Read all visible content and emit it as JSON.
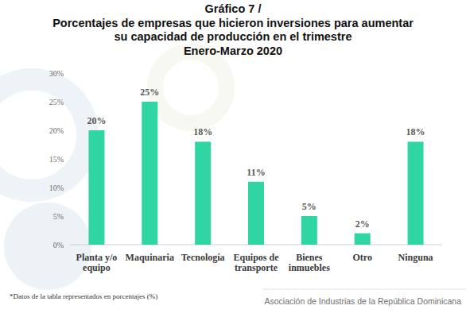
{
  "chart_data": {
    "type": "bar",
    "title": [
      "Gráfico 7 /",
      "Porcentajes de empresas que hicieron inversiones para aumentar",
      "su capacidad de producción en el trimestre",
      "Enero-Marzo 2020"
    ],
    "categories": [
      "Planta y/o equipo",
      "Maquinaria",
      "Tecnología",
      "Equipos de transporte",
      "Bienes inmuebles",
      "Otro",
      "Ninguna"
    ],
    "values": [
      20,
      25,
      18,
      11,
      5,
      2,
      18
    ],
    "value_labels": [
      "20%",
      "25%",
      "18%",
      "11%",
      "5%",
      "2%",
      "18%"
    ],
    "color": "#2fd6a3",
    "ylim": [
      0,
      30
    ],
    "yticks": [
      {
        "value": 0,
        "label": "0%"
      },
      {
        "value": 5,
        "label": "5%"
      },
      {
        "value": 10,
        "label": "10%"
      },
      {
        "value": 15,
        "label": "15%"
      },
      {
        "value": 20,
        "label": "20%"
      },
      {
        "value": 25,
        "label": "25%"
      },
      {
        "value": 30,
        "label": "30%"
      }
    ],
    "grid": false,
    "data_labels": true,
    "note": "*Datos de la tabla representados en porcentajes (%)",
    "source": "Asociación de Industrias de la República Dominicana"
  }
}
